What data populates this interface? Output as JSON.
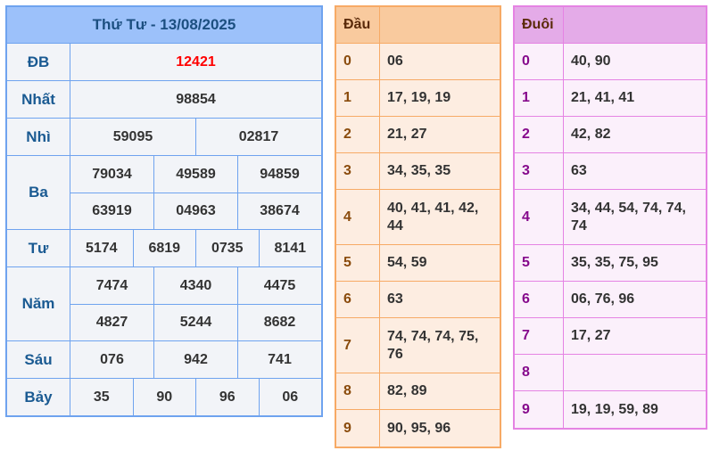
{
  "results": {
    "title": "Thứ Tư - 13/08/2025",
    "prizes": [
      {
        "label": "ĐB",
        "rows": [
          [
            "12421"
          ]
        ]
      },
      {
        "label": "Nhất",
        "rows": [
          [
            "98854"
          ]
        ]
      },
      {
        "label": "Nhì",
        "rows": [
          [
            "59095",
            "02817"
          ]
        ]
      },
      {
        "label": "Ba",
        "rows": [
          [
            "79034",
            "49589",
            "94859"
          ],
          [
            "63919",
            "04963",
            "38674"
          ]
        ]
      },
      {
        "label": "Tư",
        "rows": [
          [
            "5174",
            "6819",
            "0735",
            "8141"
          ]
        ]
      },
      {
        "label": "Năm",
        "rows": [
          [
            "7474",
            "4340",
            "4475"
          ],
          [
            "4827",
            "5244",
            "8682"
          ]
        ]
      },
      {
        "label": "Sáu",
        "rows": [
          [
            "076",
            "942",
            "741"
          ]
        ]
      },
      {
        "label": "Bảy",
        "rows": [
          [
            "35",
            "90",
            "96",
            "06"
          ]
        ]
      }
    ],
    "special_color": "#ff0000"
  },
  "dau": {
    "header": "Đầu",
    "rows": [
      {
        "k": "0",
        "v": "06"
      },
      {
        "k": "1",
        "v": "17, 19, 19"
      },
      {
        "k": "2",
        "v": "21, 27"
      },
      {
        "k": "3",
        "v": "34, 35, 35"
      },
      {
        "k": "4",
        "v": "40, 41, 41, 42, 44"
      },
      {
        "k": "5",
        "v": "54, 59"
      },
      {
        "k": "6",
        "v": "63"
      },
      {
        "k": "7",
        "v": "74, 74, 74, 75, 76"
      },
      {
        "k": "8",
        "v": "82, 89"
      },
      {
        "k": "9",
        "v": "90, 95, 96"
      }
    ]
  },
  "duoi": {
    "header": "Đuôi",
    "rows": [
      {
        "k": "0",
        "v": "40, 90"
      },
      {
        "k": "1",
        "v": "21, 41, 41"
      },
      {
        "k": "2",
        "v": "42, 82"
      },
      {
        "k": "3",
        "v": "63"
      },
      {
        "k": "4",
        "v": "34, 44, 54, 74, 74, 74"
      },
      {
        "k": "5",
        "v": "35, 35, 75, 95"
      },
      {
        "k": "6",
        "v": "06, 76, 96"
      },
      {
        "k": "7",
        "v": "17, 27"
      },
      {
        "k": "8",
        "v": ""
      },
      {
        "k": "9",
        "v": "19, 19, 59, 89"
      }
    ]
  }
}
